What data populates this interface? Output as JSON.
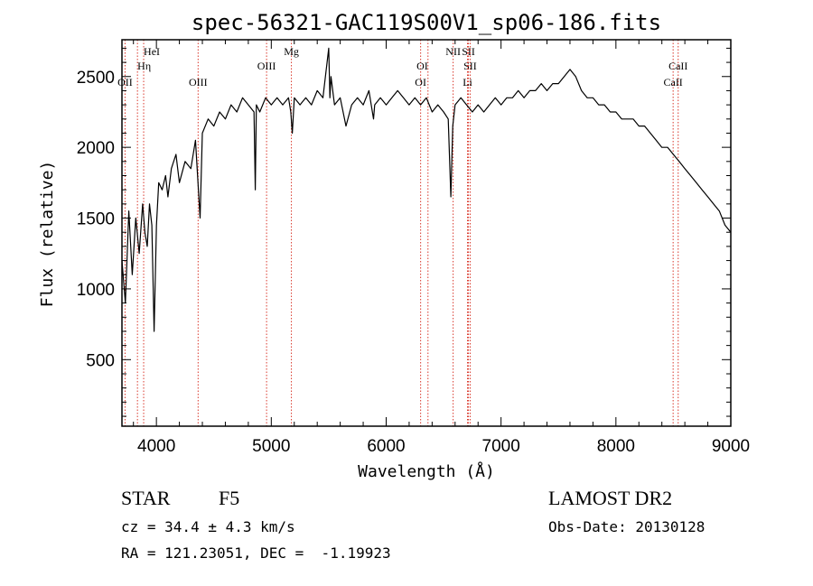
{
  "chart_data": {
    "type": "line",
    "title": "spec-56321-GAC119S00V1_sp06-186.fits",
    "xlabel": "Wavelength (Å)",
    "ylabel": "Flux (relative)",
    "xlim": [
      3700,
      9000
    ],
    "ylim": [
      30,
      2760
    ],
    "x_ticks": [
      4000,
      5000,
      6000,
      7000,
      8000,
      9000
    ],
    "y_ticks": [
      500,
      1000,
      1500,
      2000,
      2500
    ],
    "grid": false,
    "series": [
      {
        "x": [
          3700,
          3730,
          3760,
          3790,
          3820,
          3850,
          3880,
          3900,
          3920,
          3940,
          3960,
          3980,
          4000,
          4020,
          4050,
          4080,
          4100,
          4130,
          4170,
          4200,
          4250,
          4300,
          4340,
          4380,
          4400,
          4450,
          4500,
          4550,
          4600,
          4650,
          4700,
          4750,
          4800,
          4850,
          4861,
          4870,
          4900,
          4950,
          5000,
          5050,
          5100,
          5150,
          5170,
          5183,
          5200,
          5250,
          5300,
          5350,
          5400,
          5450,
          5500,
          5510,
          5520,
          5550,
          5600,
          5650,
          5700,
          5750,
          5800,
          5850,
          5890,
          5900,
          5950,
          6000,
          6050,
          6100,
          6150,
          6200,
          6250,
          6300,
          6350,
          6400,
          6450,
          6500,
          6540,
          6563,
          6580,
          6600,
          6650,
          6700,
          6750,
          6800,
          6850,
          6900,
          6950,
          7000,
          7050,
          7100,
          7150,
          7200,
          7250,
          7300,
          7350,
          7400,
          7450,
          7500,
          7550,
          7600,
          7650,
          7700,
          7750,
          7800,
          7850,
          7900,
          7950,
          8000,
          8050,
          8100,
          8150,
          8200,
          8250,
          8300,
          8350,
          8400,
          8450,
          8500,
          8550,
          8600,
          8650,
          8700,
          8750,
          8800,
          8850,
          8900,
          8950,
          9000
        ],
        "y": [
          1200,
          900,
          1550,
          1100,
          1500,
          1250,
          1600,
          1400,
          1300,
          1600,
          1450,
          700,
          1450,
          1750,
          1700,
          1800,
          1650,
          1850,
          1950,
          1750,
          1900,
          1850,
          2050,
          1500,
          2100,
          2200,
          2150,
          2250,
          2200,
          2300,
          2250,
          2350,
          2300,
          2250,
          1700,
          2300,
          2250,
          2350,
          2300,
          2350,
          2300,
          2350,
          2250,
          2100,
          2350,
          2300,
          2350,
          2300,
          2400,
          2350,
          2700,
          2350,
          2500,
          2300,
          2350,
          2150,
          2300,
          2350,
          2300,
          2400,
          2200,
          2300,
          2350,
          2300,
          2350,
          2400,
          2350,
          2300,
          2350,
          2300,
          2350,
          2250,
          2300,
          2250,
          2200,
          1650,
          2150,
          2300,
          2350,
          2300,
          2250,
          2300,
          2250,
          2300,
          2350,
          2300,
          2350,
          2350,
          2400,
          2350,
          2400,
          2400,
          2450,
          2400,
          2450,
          2450,
          2500,
          2550,
          2500,
          2400,
          2350,
          2350,
          2300,
          2300,
          2250,
          2250,
          2200,
          2200,
          2200,
          2150,
          2150,
          2100,
          2050,
          2000,
          2000,
          1950,
          1900,
          1850,
          1800,
          1750,
          1700,
          1650,
          1600,
          1550,
          1450,
          1400
        ]
      }
    ],
    "line_markers": [
      {
        "label": "OII",
        "x": 3727,
        "row": 2,
        "align": "middle"
      },
      {
        "label": "HeI",
        "x": 3889,
        "row": 0,
        "align": "start"
      },
      {
        "label": "Hη",
        "x": 3835,
        "row": 1,
        "align": "start"
      },
      {
        "label": "OIII",
        "x": 4363,
        "row": 2,
        "align": "middle"
      },
      {
        "label": "OIII",
        "x": 4959,
        "row": 1,
        "align": "middle"
      },
      {
        "label": "Mg",
        "x": 5175,
        "row": 0,
        "align": "middle"
      },
      {
        "label": "OI",
        "x": 6300,
        "row": 2,
        "align": "middle"
      },
      {
        "label": "OI",
        "x": 6364,
        "row": 1,
        "align": "end"
      },
      {
        "label": "NII",
        "x": 6583,
        "row": 0,
        "align": "middle"
      },
      {
        "label": "SII",
        "x": 6716,
        "row": 0,
        "align": "middle"
      },
      {
        "label": "SII",
        "x": 6731,
        "row": 1,
        "align": "middle"
      },
      {
        "label": "Li",
        "x": 6708,
        "row": 2,
        "align": "middle"
      },
      {
        "label": "CaII",
        "x": 8498,
        "row": 2,
        "align": "middle"
      },
      {
        "label": "CaII",
        "x": 8542,
        "row": 1,
        "align": "middle"
      }
    ]
  },
  "info": {
    "object_type": "STAR",
    "subclass": "F5",
    "survey": "LAMOST DR2",
    "redshift": "cz = 34.4 ± 4.3 km/s",
    "obs_date": "Obs-Date: 20130128",
    "coords": "RA = 121.23051, DEC =  -1.19923"
  },
  "colors": {
    "spectrum": "#000000",
    "marker_line": "#d9372b",
    "axis": "#000000",
    "background": "#ffffff"
  }
}
